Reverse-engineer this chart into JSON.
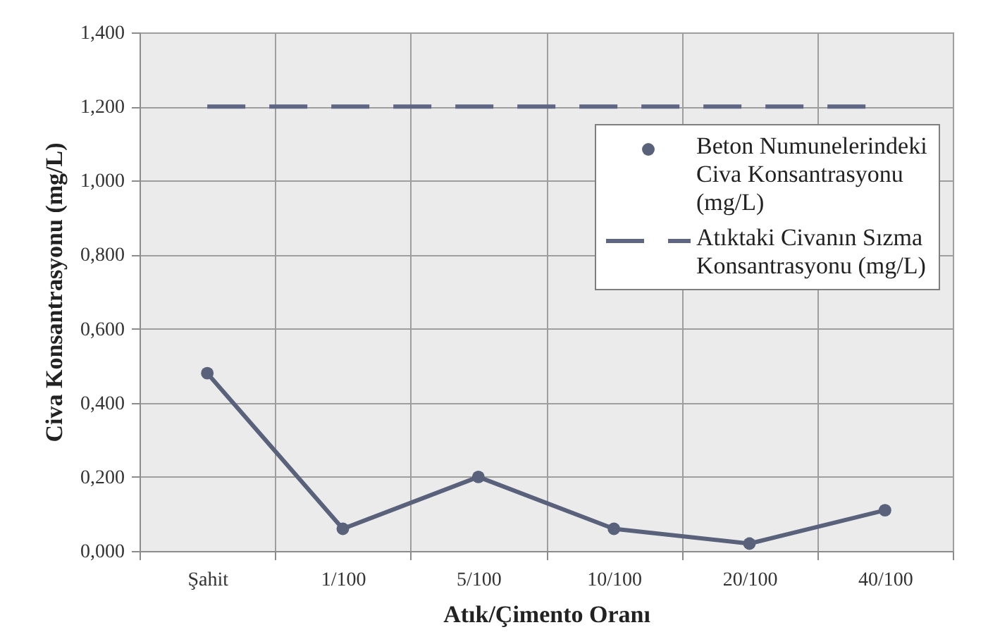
{
  "chart_data": {
    "type": "line",
    "xlabel": "Atık/Çimento Oranı",
    "ylabel": "Civa Konsantrasyonu (mg/L)",
    "categories": [
      "Şahit",
      "1/100",
      "5/100",
      "10/100",
      "20/100",
      "40/100"
    ],
    "series": [
      {
        "name": "Beton Numunelerindeki Civa Konsantrasyonu (mg/L)",
        "color": "#59627a",
        "values": [
          0.48,
          0.06,
          0.2,
          0.06,
          0.02,
          0.11
        ],
        "marker": "circle",
        "line_style": "solid"
      },
      {
        "name": "Atıktaki Civanın Sızma Konsantrasyonu (mg/L)",
        "color": "#5f6683",
        "values": [
          1.2,
          1.2,
          1.2,
          1.2,
          1.2,
          1.2
        ],
        "marker": "none",
        "line_style": "dashed"
      }
    ],
    "ylim": [
      0,
      1.4
    ],
    "yticks": [
      {
        "value": 0,
        "label": "0,000"
      },
      {
        "value": 0.2,
        "label": "0,200"
      },
      {
        "value": 0.4,
        "label": "0,400"
      },
      {
        "value": 0.6,
        "label": "0,600"
      },
      {
        "value": 0.8,
        "label": "0,800"
      },
      {
        "value": 1,
        "label": "1,000"
      },
      {
        "value": 1.2,
        "label": "1,200"
      },
      {
        "value": 1.4,
        "label": "1,400"
      }
    ],
    "grid": true,
    "legend": "top right"
  }
}
